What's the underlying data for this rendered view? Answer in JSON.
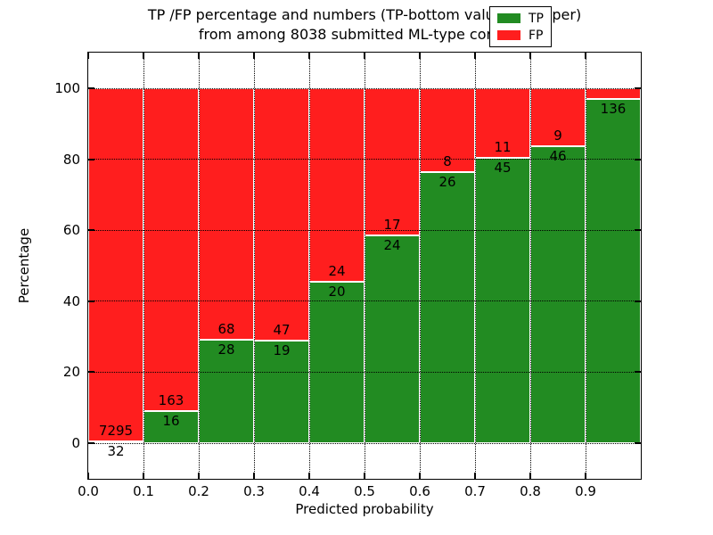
{
  "chart_data": {
    "type": "bar",
    "stacked": true,
    "title_line1": "TP /FP percentage and numbers (TP-bottom value, FP-upper)",
    "title_line2": "from among 8038 submitted ML-type contacts",
    "xlabel": "Predicted probability",
    "ylabel": "Percentage",
    "xlim": [
      0.0,
      1.0
    ],
    "ylim": [
      -10,
      110
    ],
    "x_tick_labels": [
      "0.0",
      "0.1",
      "0.2",
      "0.3",
      "0.4",
      "0.5",
      "0.6",
      "0.7",
      "0.8",
      "0.9"
    ],
    "y_ticks": [
      0,
      20,
      40,
      60,
      80,
      100
    ],
    "y_tick_labels": [
      "0",
      "20",
      "40",
      "60",
      "80",
      "100"
    ],
    "bins": [
      "0.0-0.1",
      "0.1-0.2",
      "0.2-0.3",
      "0.3-0.4",
      "0.4-0.5",
      "0.5-0.6",
      "0.6-0.7",
      "0.7-0.8",
      "0.8-0.9",
      "0.9-1.0"
    ],
    "series": [
      {
        "name": "TP",
        "color": "#228b22",
        "counts": [
          32,
          16,
          28,
          19,
          20,
          24,
          26,
          45,
          46,
          136
        ]
      },
      {
        "name": "FP",
        "color": "#ff1e1e",
        "counts": [
          7295,
          163,
          68,
          47,
          24,
          17,
          8,
          11,
          9,
          null
        ]
      }
    ],
    "tp_percent": [
      0.44,
      8.94,
      29.17,
      28.79,
      45.45,
      58.54,
      76.47,
      80.36,
      83.64,
      97.1
    ],
    "legend": {
      "position": "upper right",
      "entries": [
        "TP",
        "FP"
      ]
    },
    "grid": true
  }
}
